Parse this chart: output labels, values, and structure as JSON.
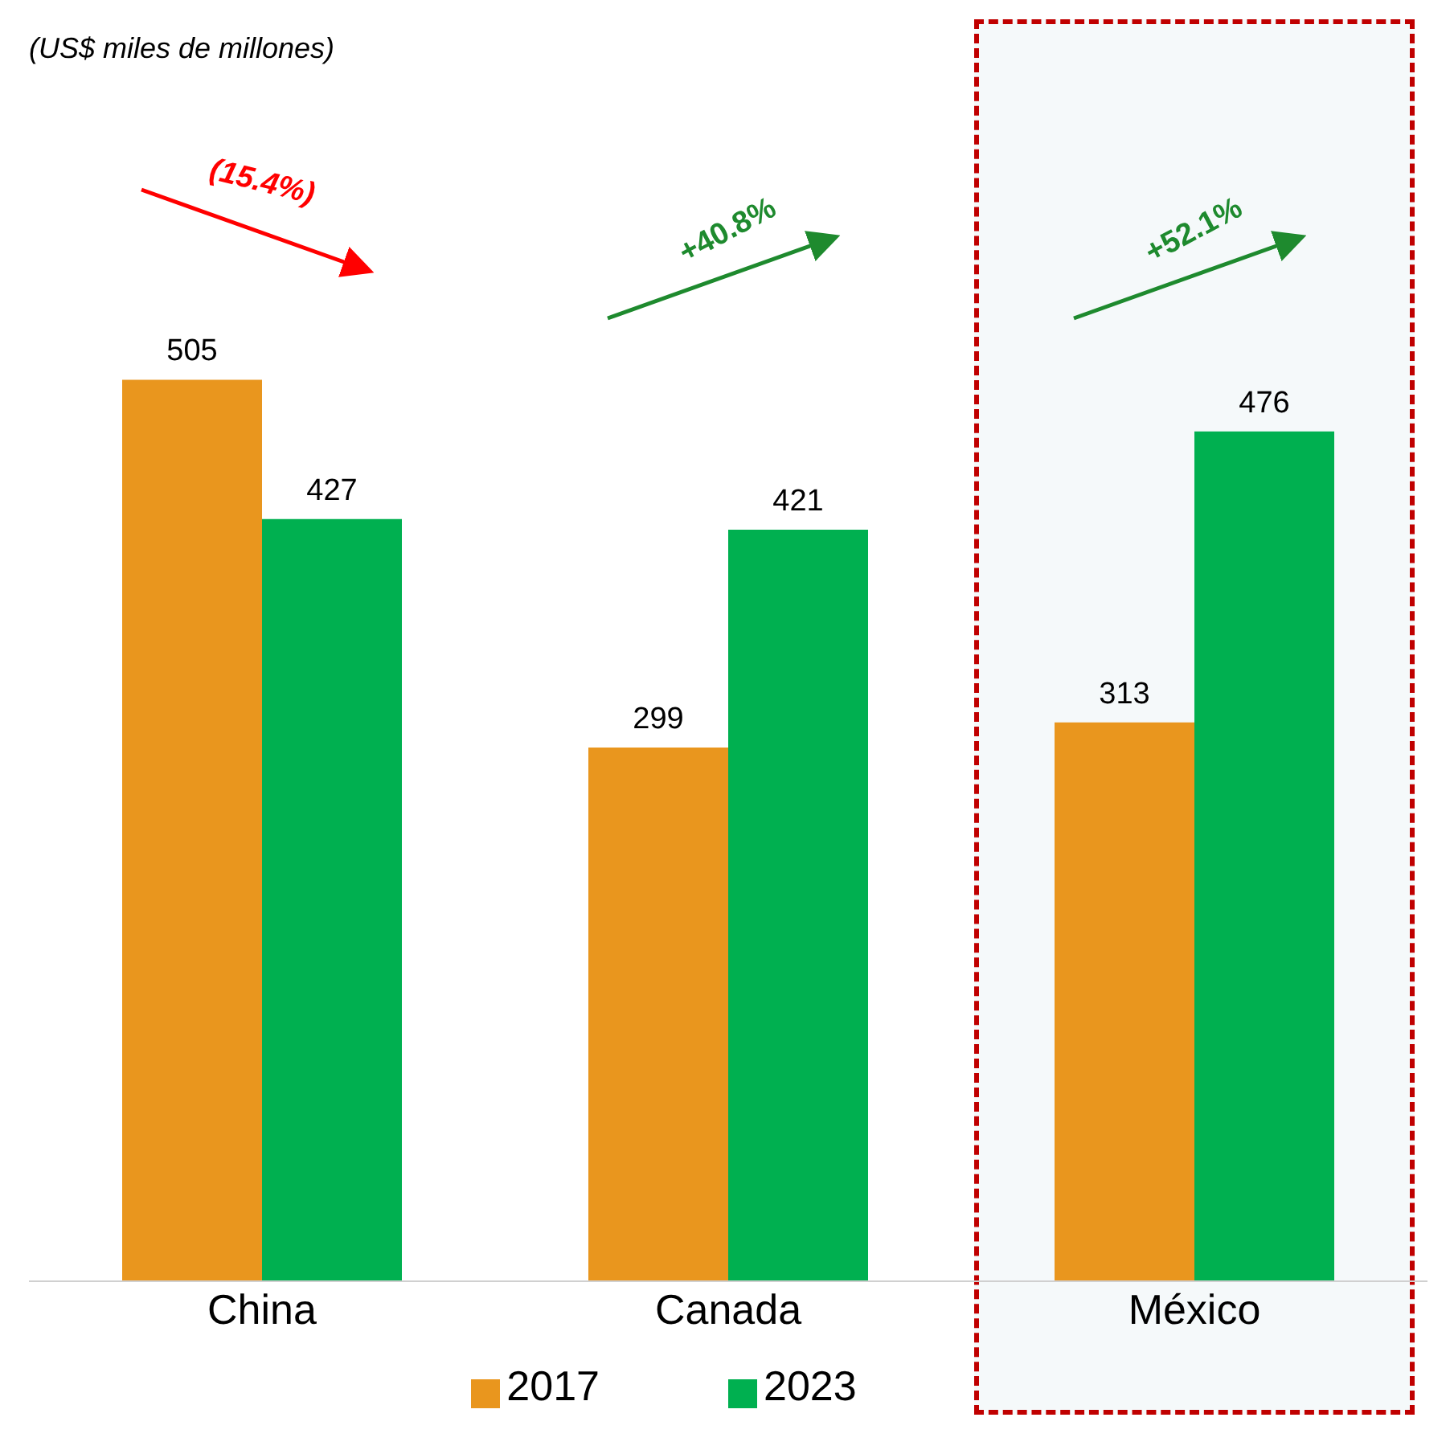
{
  "chart_data": {
    "type": "bar",
    "categories": [
      "China",
      "Canada",
      "México"
    ],
    "series": [
      {
        "name": "2017",
        "color": "#e9961e",
        "values": [
          505,
          299,
          313
        ]
      },
      {
        "name": "2023",
        "color": "#00b050",
        "values": [
          427,
          421,
          476
        ]
      }
    ],
    "data_labels": true,
    "tick_labels": "x",
    "legend": "bottom",
    "annotations": [
      "(US$ miles de millones)",
      "(15.4%)",
      "+40.8%",
      "+52.1%"
    ],
    "bands": [
      {
        "axis": "x",
        "from": "México",
        "to": "México",
        "color": "#c00000"
      }
    ]
  }
}
